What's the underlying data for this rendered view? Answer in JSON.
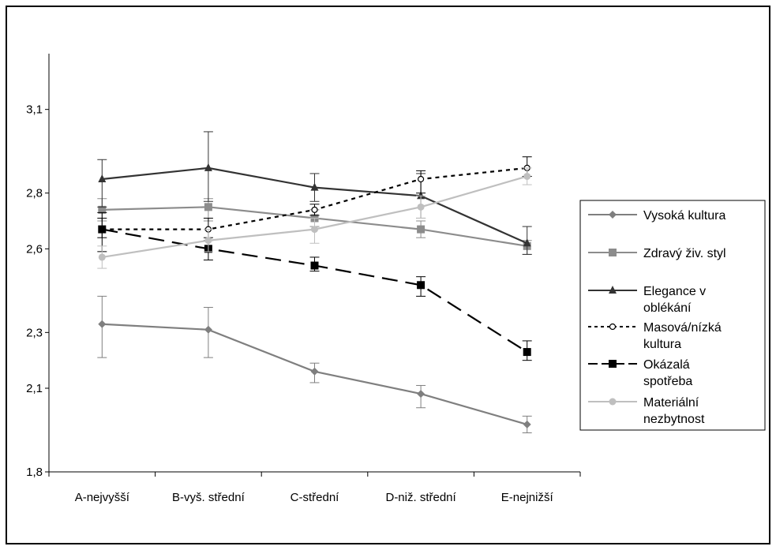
{
  "chart_data": {
    "type": "line",
    "title": "",
    "xlabel": "",
    "ylabel": "",
    "categories": [
      "A-nejvyšší",
      "B-vyš. střední",
      "C-střední",
      "D-niž. střední",
      "E-nejnižší"
    ],
    "ylim": [
      1.8,
      3.3
    ],
    "yticks": [
      "1,8",
      "2,1",
      "2,3",
      "2,6",
      "2,8",
      "3,1"
    ],
    "grid": false,
    "legend_position": "right",
    "series": [
      {
        "name": "Vysoká kultura",
        "values": [
          2.33,
          2.31,
          2.16,
          2.08,
          1.97
        ],
        "err_low": [
          2.21,
          2.21,
          2.12,
          2.03,
          1.94
        ],
        "err_high": [
          2.43,
          2.39,
          2.19,
          2.11,
          2.0
        ],
        "color": "#7f7f7f",
        "dash": "",
        "marker": "diamond"
      },
      {
        "name": "Zdravý živ. styl",
        "values": [
          2.74,
          2.75,
          2.71,
          2.67,
          2.61
        ],
        "err_low": [
          2.7,
          2.7,
          2.68,
          2.64,
          2.58
        ],
        "err_high": [
          2.78,
          2.78,
          2.74,
          2.7,
          2.63
        ],
        "color": "#8c8c8c",
        "dash": "",
        "marker": "square"
      },
      {
        "name": "Elegance v oblékání",
        "values": [
          2.85,
          2.89,
          2.82,
          2.79,
          2.62
        ],
        "err_low": [
          2.75,
          2.77,
          2.77,
          2.71,
          2.58
        ],
        "err_high": [
          2.92,
          3.02,
          2.87,
          2.87,
          2.68
        ],
        "color": "#333333",
        "dash": "",
        "marker": "triangle"
      },
      {
        "name": "Masová/nízká kultura",
        "values": [
          2.67,
          2.67,
          2.74,
          2.85,
          2.89
        ],
        "err_low": [
          2.64,
          2.63,
          2.72,
          2.8,
          2.86
        ],
        "err_high": [
          2.71,
          2.71,
          2.76,
          2.88,
          2.93
        ],
        "color": "#000000",
        "dash": "5,5",
        "marker": "circle-open"
      },
      {
        "name": "Okázalá spotřeba",
        "values": [
          2.67,
          2.6,
          2.54,
          2.47,
          2.23
        ],
        "err_low": [
          2.59,
          2.56,
          2.52,
          2.43,
          2.2
        ],
        "err_high": [
          2.73,
          2.64,
          2.57,
          2.5,
          2.27
        ],
        "color": "#000000",
        "dash": "20,10",
        "marker": "square"
      },
      {
        "name": "Materiální nezbytnost",
        "values": [
          2.57,
          2.63,
          2.67,
          2.75,
          2.86
        ],
        "err_low": [
          2.53,
          2.59,
          2.62,
          2.71,
          2.83
        ],
        "err_high": [
          2.61,
          2.67,
          2.71,
          2.79,
          2.89
        ],
        "color": "#bfbfbf",
        "dash": "",
        "marker": "circle"
      }
    ],
    "legend": [
      [
        "Vysoká kultura"
      ],
      [
        "Zdravý živ. styl"
      ],
      [
        "Elegance v",
        "oblékání"
      ],
      [
        "Masová/nízká",
        "kultura"
      ],
      [
        "Okázalá",
        "spotřeba"
      ],
      [
        "Materiální",
        "nezbytnost"
      ]
    ]
  }
}
